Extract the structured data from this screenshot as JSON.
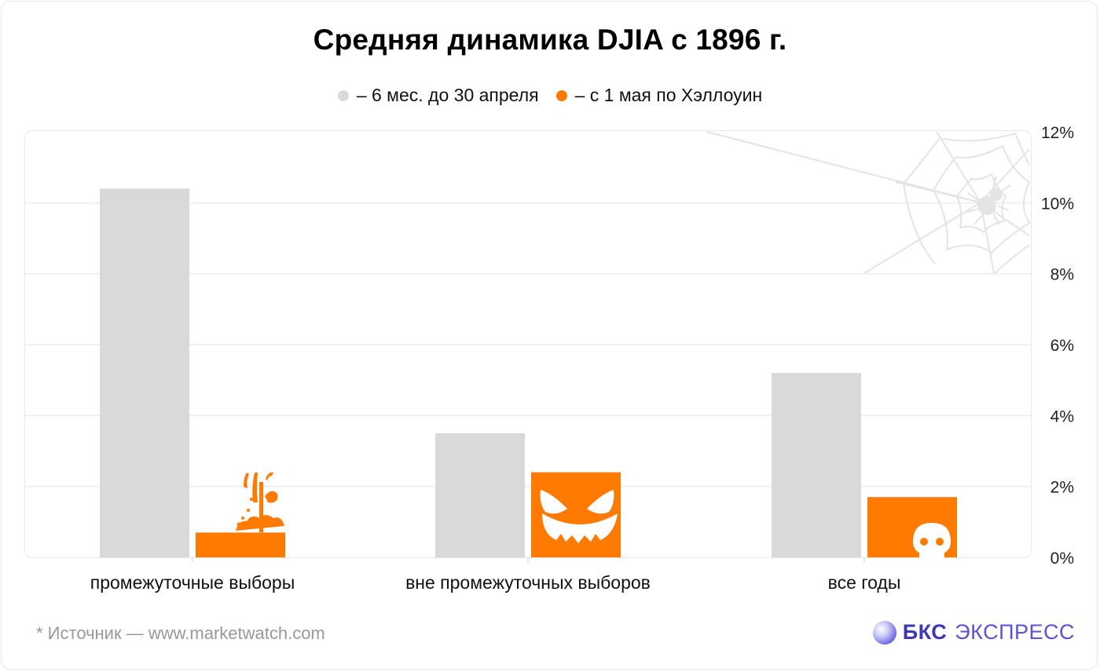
{
  "title": "Средняя динамика DJIA с 1896 г.",
  "legend": [
    {
      "label": "– 6 мес. до 30 апреля",
      "color": "#d9d9d9"
    },
    {
      "label": "– с 1 мая по Хэллоуин",
      "color": "#ff7a00"
    }
  ],
  "footer": {
    "source": "* Источник — www.marketwatch.com",
    "brand_bold": "БКС",
    "brand_light": "ЭКСПРЕСС"
  },
  "colors": {
    "gray": "#d9d9d9",
    "orange": "#ff7a00",
    "grid": "#ececec"
  },
  "icons": [
    "zombie-hand-icon",
    "pumpkin-face-icon",
    "skull-icon",
    "spider-web-icon"
  ],
  "chart_data": {
    "type": "bar",
    "title": "Средняя динамика DJIA с 1896 г.",
    "categories": [
      "промежуточные выборы",
      "вне промежуточных выборов",
      "все годы"
    ],
    "series": [
      {
        "name": "– 6 мес. до 30 апреля",
        "values": [
          10.4,
          3.5,
          5.2
        ],
        "color": "#d9d9d9"
      },
      {
        "name": "– с 1 мая по Хэллоуин",
        "values": [
          0.7,
          2.4,
          1.7
        ],
        "color": "#ff7a00"
      }
    ],
    "y_ticks": [
      "0%",
      "2%",
      "4%",
      "6%",
      "8%",
      "10%",
      "12%"
    ],
    "ylim": [
      0,
      12
    ],
    "grid": true,
    "legend_position": "top-center",
    "y_axis_side": "right"
  }
}
